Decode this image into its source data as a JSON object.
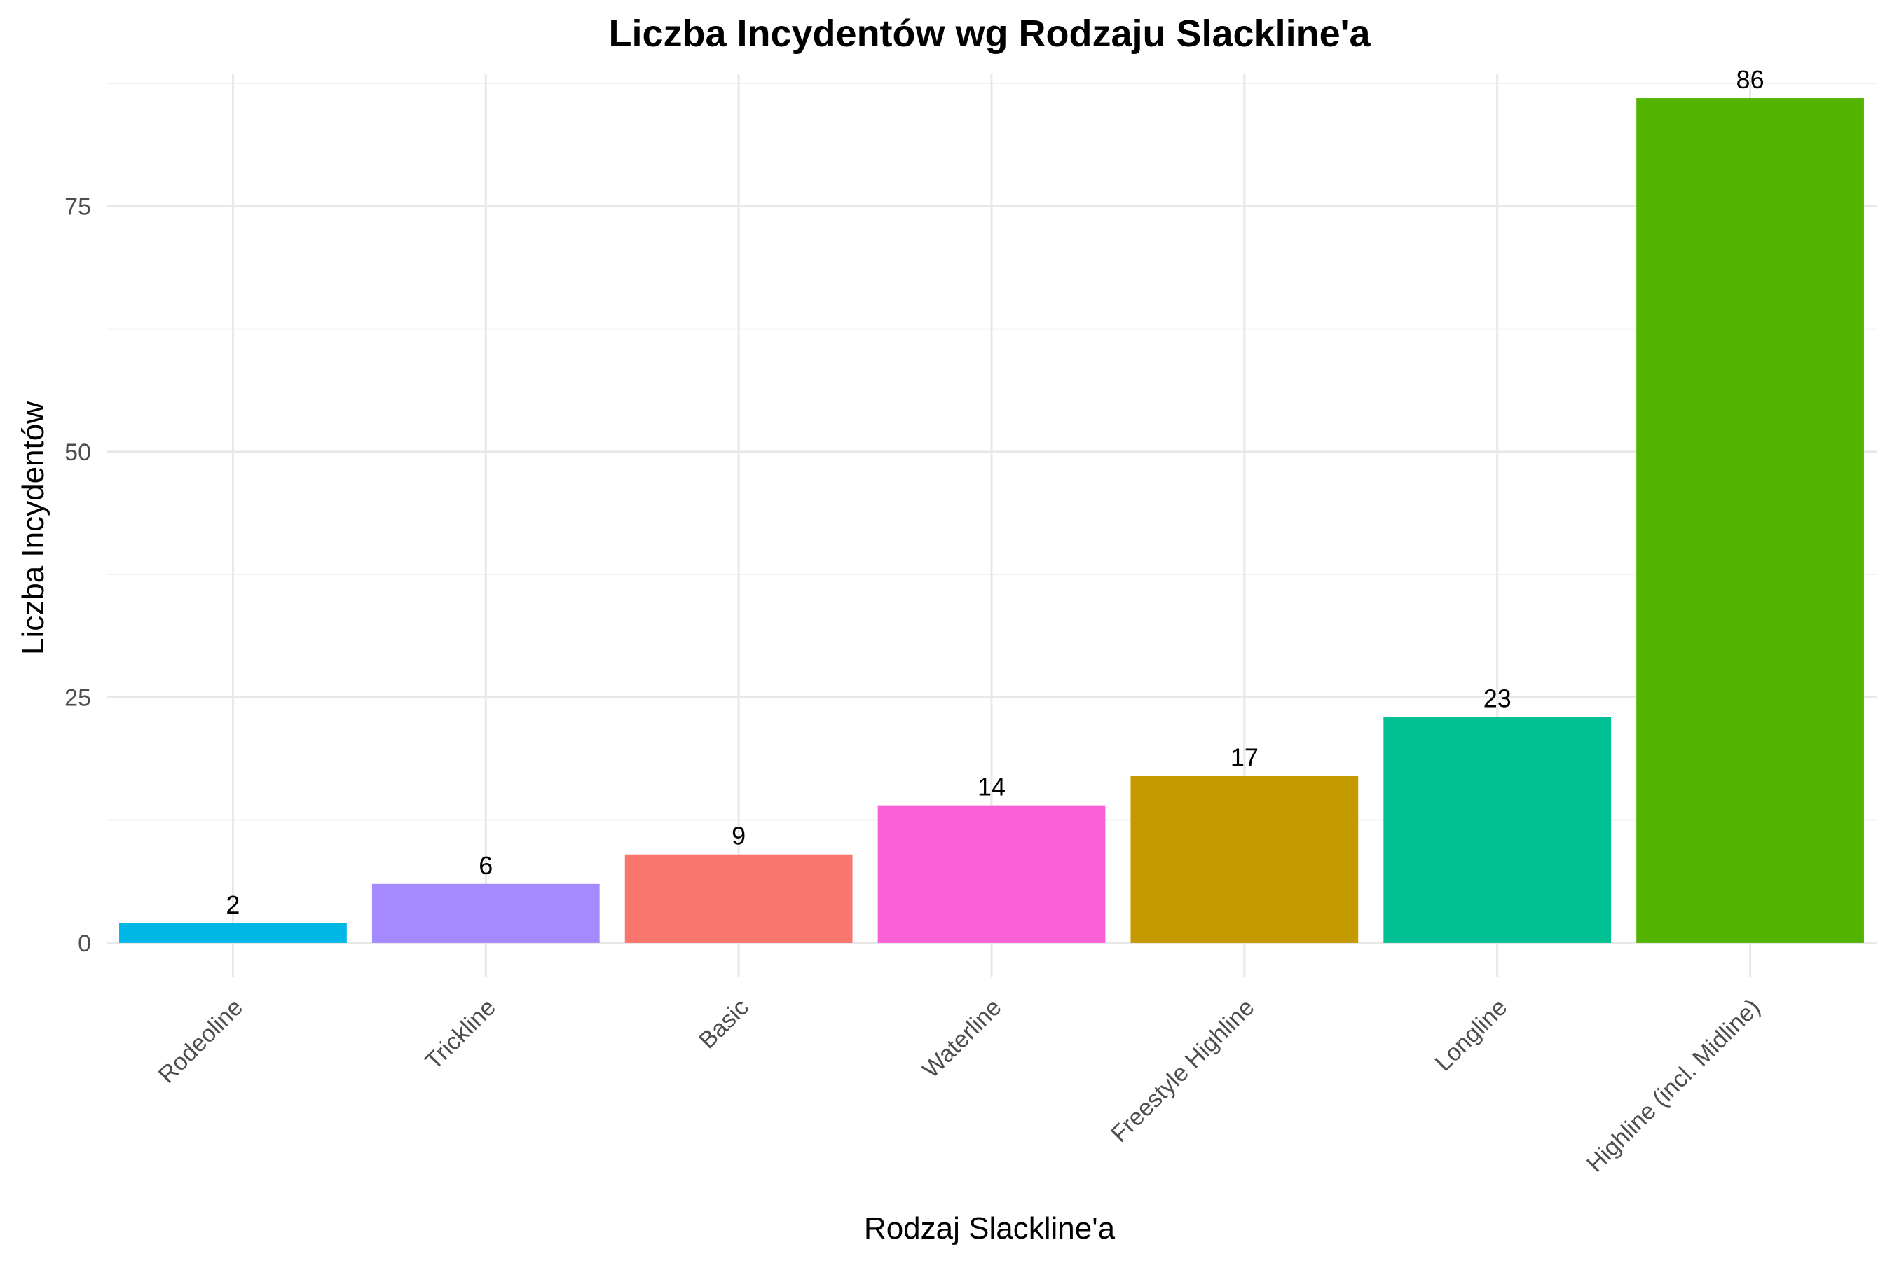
{
  "chart_data": {
    "type": "bar",
    "title": "Liczba Incydentów wg Rodzaju Slackline'a",
    "xlabel": "Rodzaj Slackline'a",
    "ylabel": "Liczba Incydentów",
    "categories": [
      "Rodeoline",
      "Trickline",
      "Basic",
      "Waterline",
      "Freestyle Highline",
      "Longline",
      "Highline (incl. Midline)"
    ],
    "values": [
      2,
      6,
      9,
      14,
      17,
      23,
      86
    ],
    "data_labels": [
      "2",
      "6",
      "9",
      "14",
      "17",
      "23",
      "86"
    ],
    "colors": [
      "#00B8E7",
      "#A58AFF",
      "#F8766D",
      "#FB61D7",
      "#C49A00",
      "#00C094",
      "#53B400"
    ],
    "ylim": [
      -3.5,
      88.5
    ],
    "y_ticks": [
      0,
      25,
      50,
      75
    ],
    "y_tick_labels": [
      "0",
      "25",
      "50",
      "75"
    ],
    "y_minor_ticks": [
      12.5,
      37.5,
      62.5,
      87.5
    ],
    "grid": true,
    "legend": "none"
  }
}
